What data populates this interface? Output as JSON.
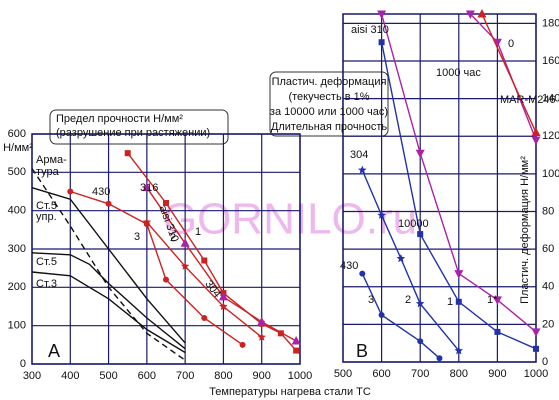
{
  "chart_data": [
    {
      "type": "line",
      "panel": "A",
      "ylabel": "Н/мм²",
      "xlim": [
        300,
        1000
      ],
      "xticks": [
        300,
        400,
        500,
        600,
        700,
        800,
        900,
        1000
      ],
      "ylim": [
        0,
        600
      ],
      "yticks": [
        0,
        100,
        200,
        300,
        400,
        500,
        600
      ],
      "grid": true,
      "series": [
        {
          "x": [
            550,
            650,
            750,
            800,
            900,
            950,
            990
          ],
          "values": [
            550,
            420,
            270,
            185,
            105,
            80,
            35
          ],
          "color": "#cc2222",
          "marker": "square",
          "marker_color": "#cc2222"
        },
        {
          "x": [
            600,
            700,
            800,
            900,
            990
          ],
          "values": [
            460,
            315,
            175,
            110,
            60
          ],
          "color": "#cc2222",
          "marker": "triangle",
          "marker_color": "#aa22aa"
        },
        {
          "x": [
            600,
            700,
            800,
            900
          ],
          "values": [
            370,
            255,
            150,
            70
          ],
          "color": "#cc2222",
          "marker": "star",
          "marker_color": "#cc2222"
        },
        {
          "x": [
            400,
            500,
            600,
            650,
            750,
            850
          ],
          "values": [
            450,
            418,
            365,
            220,
            120,
            50
          ],
          "color": "#cc2222",
          "marker": "circle",
          "marker_color": "#cc2222"
        },
        {
          "x": [
            300,
            400,
            500,
            600,
            700
          ],
          "values": [
            460,
            430,
            300,
            170,
            55
          ],
          "color": "#111111"
        },
        {
          "x": [
            300,
            400,
            450,
            500,
            600,
            700
          ],
          "values": [
            290,
            285,
            260,
            210,
            120,
            40
          ],
          "color": "#111111"
        },
        {
          "x": [
            300,
            400,
            500,
            600,
            700
          ],
          "values": [
            240,
            230,
            170,
            90,
            30
          ],
          "color": "#111111"
        },
        {
          "x": [
            300,
            400,
            500,
            600,
            700
          ],
          "values": [
            510,
            360,
            200,
            80,
            10
          ],
          "color": "#111111",
          "dash": true
        }
      ],
      "box": [
        "Предел прочности Н/мм²",
        "(разрушение при растяжении)"
      ],
      "annotations": [
        "Арма-",
        "тура",
        "Ст.5",
        "упр.",
        "Ст.5",
        "Ст.3",
        "430",
        "316",
        "aisi 310",
        "3",
        "2",
        "1",
        "304",
        "A"
      ]
    },
    {
      "type": "line",
      "panel": "B",
      "ylabel": "Пластич. деформация Н/мм²",
      "xlim": [
        500,
        1000
      ],
      "xticks": [
        500,
        600,
        700,
        800,
        900,
        1000
      ],
      "ylim": [
        0,
        185
      ],
      "yticks": [
        0,
        20,
        40,
        60,
        80,
        100,
        120,
        140,
        160,
        180
      ],
      "grid": true,
      "series": [
        {
          "x": [
            600,
            700,
            800,
            900,
            1000
          ],
          "values": [
            170,
            68,
            32,
            16,
            7
          ],
          "color": "#2233aa",
          "marker": "square",
          "marker_color": "#2233aa"
        },
        {
          "x": [
            550,
            600,
            650,
            700,
            800
          ],
          "values": [
            102,
            78,
            55,
            31,
            6
          ],
          "color": "#2233aa",
          "marker": "star",
          "marker_color": "#2233aa"
        },
        {
          "x": [
            550,
            600,
            700,
            750
          ],
          "values": [
            47,
            25,
            11,
            2
          ],
          "color": "#2233aa",
          "marker": "circle",
          "marker_color": "#2233aa"
        },
        {
          "x": [
            600,
            700,
            800,
            900,
            1000
          ],
          "values": [
            185,
            111,
            47,
            33,
            16
          ],
          "color": "#aa22aa",
          "marker": "triangle-down",
          "marker_color": "#aa22aa"
        },
        {
          "x": [
            830,
            900,
            1000
          ],
          "values": [
            185,
            170,
            118
          ],
          "color": "#aa22aa",
          "marker": "triangle-down",
          "marker_color": "#aa22aa"
        },
        {
          "x": [
            860,
            1000
          ],
          "values": [
            185,
            122
          ],
          "color": "#cc2222",
          "marker": "triangle",
          "marker_color": "#cc2222"
        }
      ],
      "box": [
        "Пластич. деформация",
        "(текучесть в 1%",
        "за 10000 или 1000 час)",
        "Длительная прочность"
      ],
      "annotations": [
        "aisi 310",
        "1000 час",
        "0",
        "MAR-M246",
        "304",
        "10000",
        "430",
        "3",
        "2",
        "1",
        "1*",
        "B"
      ]
    }
  ],
  "watermark": "GORNILO.ru",
  "xlabel": "Температуры нагрева стали ТС"
}
